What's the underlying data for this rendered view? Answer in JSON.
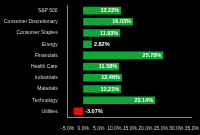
{
  "chart_data": {
    "type": "bar",
    "orientation": "horizontal",
    "categories": [
      "S&P 500",
      "Consumer Discretionary",
      "Consumer Staples",
      "Energy",
      "Financials",
      "Health Care",
      "Industrials",
      "Materials",
      "Technology",
      "Utilities"
    ],
    "values": [
      12.22,
      16.03,
      11.93,
      2.82,
      25.78,
      11.58,
      12.46,
      12.21,
      23.14,
      -3.07
    ],
    "value_labels": [
      "12.22%",
      "16.03%",
      "11.93%",
      "2.82%",
      "25.78%",
      "11.58%",
      "12.46%",
      "12.21%",
      "23.14%",
      "-3.07%"
    ],
    "colors": [
      "#12a538",
      "#12a538",
      "#12a538",
      "#12a538",
      "#12a538",
      "#12a538",
      "#12a538",
      "#12a538",
      "#12a538",
      "#e01010"
    ],
    "xlim": [
      -5,
      35
    ],
    "xticks": [
      {
        "value": -5,
        "label": "-5.0%"
      },
      {
        "value": 0,
        "label": "0.0%"
      },
      {
        "value": 5,
        "label": "5.0%"
      },
      {
        "value": 10,
        "label": "10.0%"
      },
      {
        "value": 15,
        "label": "15.0%"
      },
      {
        "value": 20,
        "label": "20.0%"
      },
      {
        "value": 25,
        "label": "25.0%"
      },
      {
        "value": 30,
        "label": "30.0%"
      },
      {
        "value": 35,
        "label": "35.0%"
      }
    ],
    "grid": false,
    "data_labels": true
  }
}
